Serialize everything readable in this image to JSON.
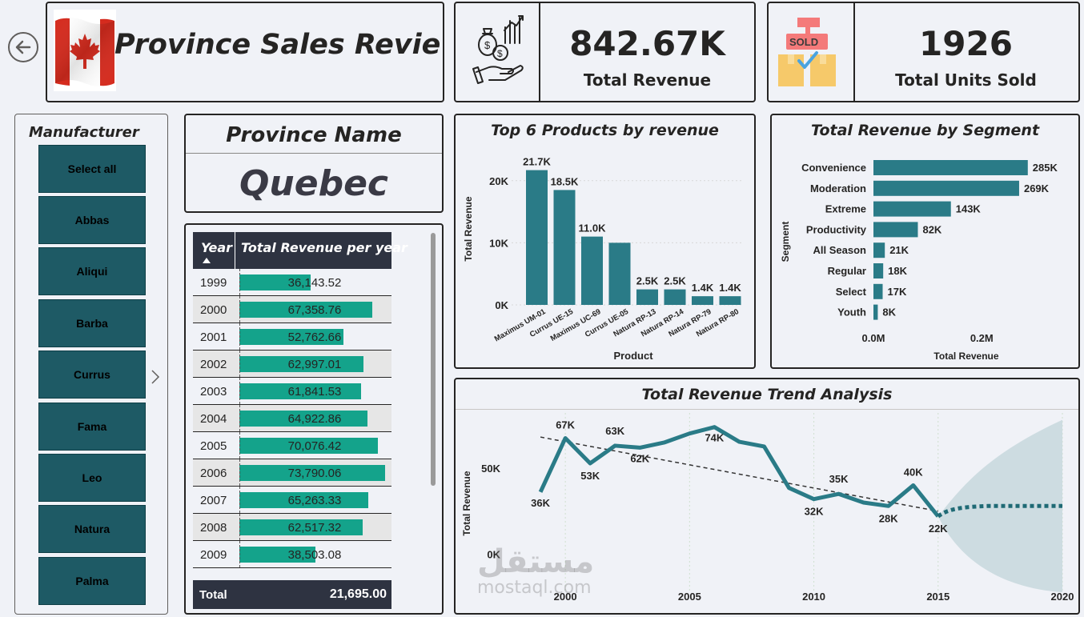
{
  "header": {
    "title": "Province Sales Review"
  },
  "kpis": {
    "revenue": {
      "value": "842.67K",
      "label": "Total Revenue"
    },
    "units": {
      "value": "1926",
      "label": "Total Units Sold",
      "sold_sign": "SOLD"
    }
  },
  "slicer": {
    "title": "Manufacturer",
    "items": [
      "Select all",
      "Abbas",
      "Aliqui",
      "Barba",
      "Currus",
      "Fama",
      "Leo",
      "Natura",
      "Palma"
    ]
  },
  "province": {
    "title": "Province Name",
    "name": "Quebec"
  },
  "table": {
    "col_year": "Year",
    "col_revenue": "Total Revenue per year",
    "rows": [
      {
        "year": "1999",
        "revenue": "36,143.52",
        "value": 36143.52
      },
      {
        "year": "2000",
        "revenue": "67,358.76",
        "value": 67358.76
      },
      {
        "year": "2001",
        "revenue": "52,762.66",
        "value": 52762.66
      },
      {
        "year": "2002",
        "revenue": "62,997.01",
        "value": 62997.01
      },
      {
        "year": "2003",
        "revenue": "61,841.53",
        "value": 61841.53
      },
      {
        "year": "2004",
        "revenue": "64,922.86",
        "value": 64922.86
      },
      {
        "year": "2005",
        "revenue": "70,076.42",
        "value": 70076.42
      },
      {
        "year": "2006",
        "revenue": "73,790.06",
        "value": 73790.06
      },
      {
        "year": "2007",
        "revenue": "65,263.33",
        "value": 65263.33
      },
      {
        "year": "2008",
        "revenue": "62,517.32",
        "value": 62517.32
      },
      {
        "year": "2009",
        "revenue": "38,503.08",
        "value": 38503.08
      }
    ],
    "total_label": "Total",
    "total_value": "21,695.00"
  },
  "chart_data": [
    {
      "type": "bar",
      "title": "Top 6 Products by revenue",
      "xlabel": "Product",
      "ylabel": "Total Revenue",
      "categories": [
        "Maximus UM-01",
        "Currus UE-15",
        "Maximus UC-69",
        "Currus UE-05",
        "Natura RP-13",
        "Natura RP-14",
        "Natura RP-79",
        "Natura RP-80"
      ],
      "values": [
        21700,
        18500,
        11000,
        10000,
        2500,
        2500,
        1400,
        1400
      ],
      "data_labels": [
        "21.7K",
        "18.5K",
        "11.0K",
        "",
        "2.5K",
        "2.5K",
        "1.4K",
        "1.4K"
      ],
      "y_ticks": [
        {
          "value": 0,
          "label": "0K"
        },
        {
          "value": 10000,
          "label": "10K"
        },
        {
          "value": 20000,
          "label": "20K"
        }
      ],
      "ylim": [
        0,
        23000
      ],
      "color": "#2a7b87"
    },
    {
      "type": "bar",
      "orientation": "horizontal",
      "title": "Total Revenue by Segment",
      "xlabel": "Total Revenue",
      "ylabel": "Segment",
      "categories": [
        "Convenience",
        "Moderation",
        "Extreme",
        "Productivity",
        "All Season",
        "Regular",
        "Select",
        "Youth"
      ],
      "values": [
        285000,
        269000,
        143000,
        82000,
        21000,
        18000,
        17000,
        8000
      ],
      "data_labels": [
        "285K",
        "269K",
        "143K",
        "82K",
        "21K",
        "18K",
        "17K",
        "8K"
      ],
      "x_ticks": [
        {
          "value": 0,
          "label": "0.0M"
        },
        {
          "value": 200000,
          "label": "0.2M"
        }
      ],
      "xlim": [
        0,
        340000
      ],
      "color": "#2a7b87"
    },
    {
      "type": "line",
      "title": "Total Revenue Trend Analysis",
      "xlabel": "",
      "ylabel": "Total Revenue",
      "x": [
        1999,
        2000,
        2001,
        2002,
        2003,
        2004,
        2005,
        2006,
        2007,
        2008,
        2009,
        2010,
        2011,
        2012,
        2013,
        2014,
        2015
      ],
      "y": [
        36143,
        67358,
        52762,
        62997,
        61841,
        64922,
        70076,
        73790,
        65263,
        62517,
        38503,
        32000,
        35000,
        30000,
        28000,
        40000,
        22000
      ],
      "point_labels": [
        {
          "x": 1999,
          "label": "36K"
        },
        {
          "x": 2000,
          "label": "67K"
        },
        {
          "x": 2001,
          "label": "53K"
        },
        {
          "x": 2002,
          "label": "63K"
        },
        {
          "x": 2003,
          "label": "62K"
        },
        {
          "x": 2006,
          "label": "74K"
        },
        {
          "x": 2010,
          "label": "32K"
        },
        {
          "x": 2011,
          "label": "35K"
        },
        {
          "x": 2013,
          "label": "28K"
        },
        {
          "x": 2014,
          "label": "40K"
        },
        {
          "x": 2015,
          "label": "22K"
        }
      ],
      "trend_line": {
        "x": [
          1999,
          2015
        ],
        "y": [
          68000,
          25000
        ]
      },
      "forecast": {
        "x": [
          2015,
          2016,
          2020
        ],
        "y": [
          22000,
          27000,
          28000
        ],
        "upper": [
          22000,
          45000,
          78000
        ],
        "lower": [
          22000,
          12000,
          -20000
        ]
      },
      "x_ticks": [
        2000,
        2005,
        2010,
        2015,
        2020
      ],
      "y_ticks": [
        {
          "value": 0,
          "label": "0K"
        },
        {
          "value": 50000,
          "label": "50K"
        }
      ],
      "xlim": [
        1997,
        2020
      ],
      "ylim": [
        -22000,
        82000
      ],
      "line_color": "#2a7b87",
      "band_color": "#c9d9de"
    }
  ],
  "watermark": {
    "arabic": "مستقل",
    "latin": "mostaql.com"
  }
}
